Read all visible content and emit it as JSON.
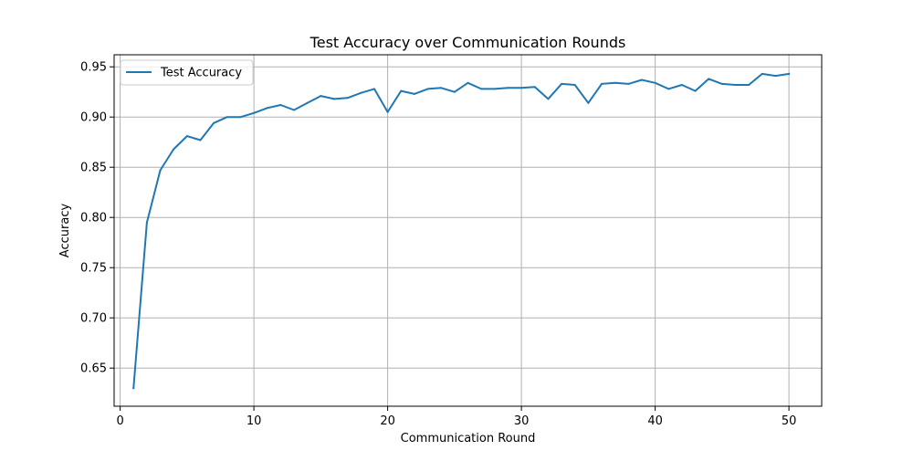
{
  "chart_data": {
    "type": "line",
    "title": "Test Accuracy over Communication Rounds",
    "xlabel": "Communication Round",
    "ylabel": "Accuracy",
    "xlim": [
      -0.45,
      52.45
    ],
    "ylim": [
      0.612,
      0.962
    ],
    "xticks": [
      0,
      10,
      20,
      30,
      40,
      50
    ],
    "yticks": [
      0.65,
      0.7,
      0.75,
      0.8,
      0.85,
      0.9,
      0.95
    ],
    "ytick_labels": [
      "0.65",
      "0.70",
      "0.75",
      "0.80",
      "0.85",
      "0.90",
      "0.95"
    ],
    "grid": true,
    "legend_position": "upper-left",
    "series": [
      {
        "name": "Test Accuracy",
        "color": "#1f77b4",
        "x": [
          1,
          2,
          3,
          4,
          5,
          6,
          7,
          8,
          9,
          10,
          11,
          12,
          13,
          14,
          15,
          16,
          17,
          18,
          19,
          20,
          21,
          22,
          23,
          24,
          25,
          26,
          27,
          28,
          29,
          30,
          31,
          32,
          33,
          34,
          35,
          36,
          37,
          38,
          39,
          40,
          41,
          42,
          43,
          44,
          45,
          46,
          47,
          48,
          49,
          50
        ],
        "y": [
          0.63,
          0.795,
          0.847,
          0.868,
          0.881,
          0.877,
          0.894,
          0.9,
          0.9,
          0.904,
          0.909,
          0.912,
          0.907,
          0.914,
          0.921,
          0.918,
          0.919,
          0.924,
          0.928,
          0.905,
          0.926,
          0.923,
          0.928,
          0.929,
          0.925,
          0.934,
          0.928,
          0.928,
          0.929,
          0.929,
          0.93,
          0.918,
          0.933,
          0.932,
          0.914,
          0.933,
          0.934,
          0.933,
          0.937,
          0.934,
          0.928,
          0.932,
          0.926,
          0.938,
          0.933,
          0.932,
          0.932,
          0.943,
          0.941,
          0.943
        ]
      }
    ]
  }
}
